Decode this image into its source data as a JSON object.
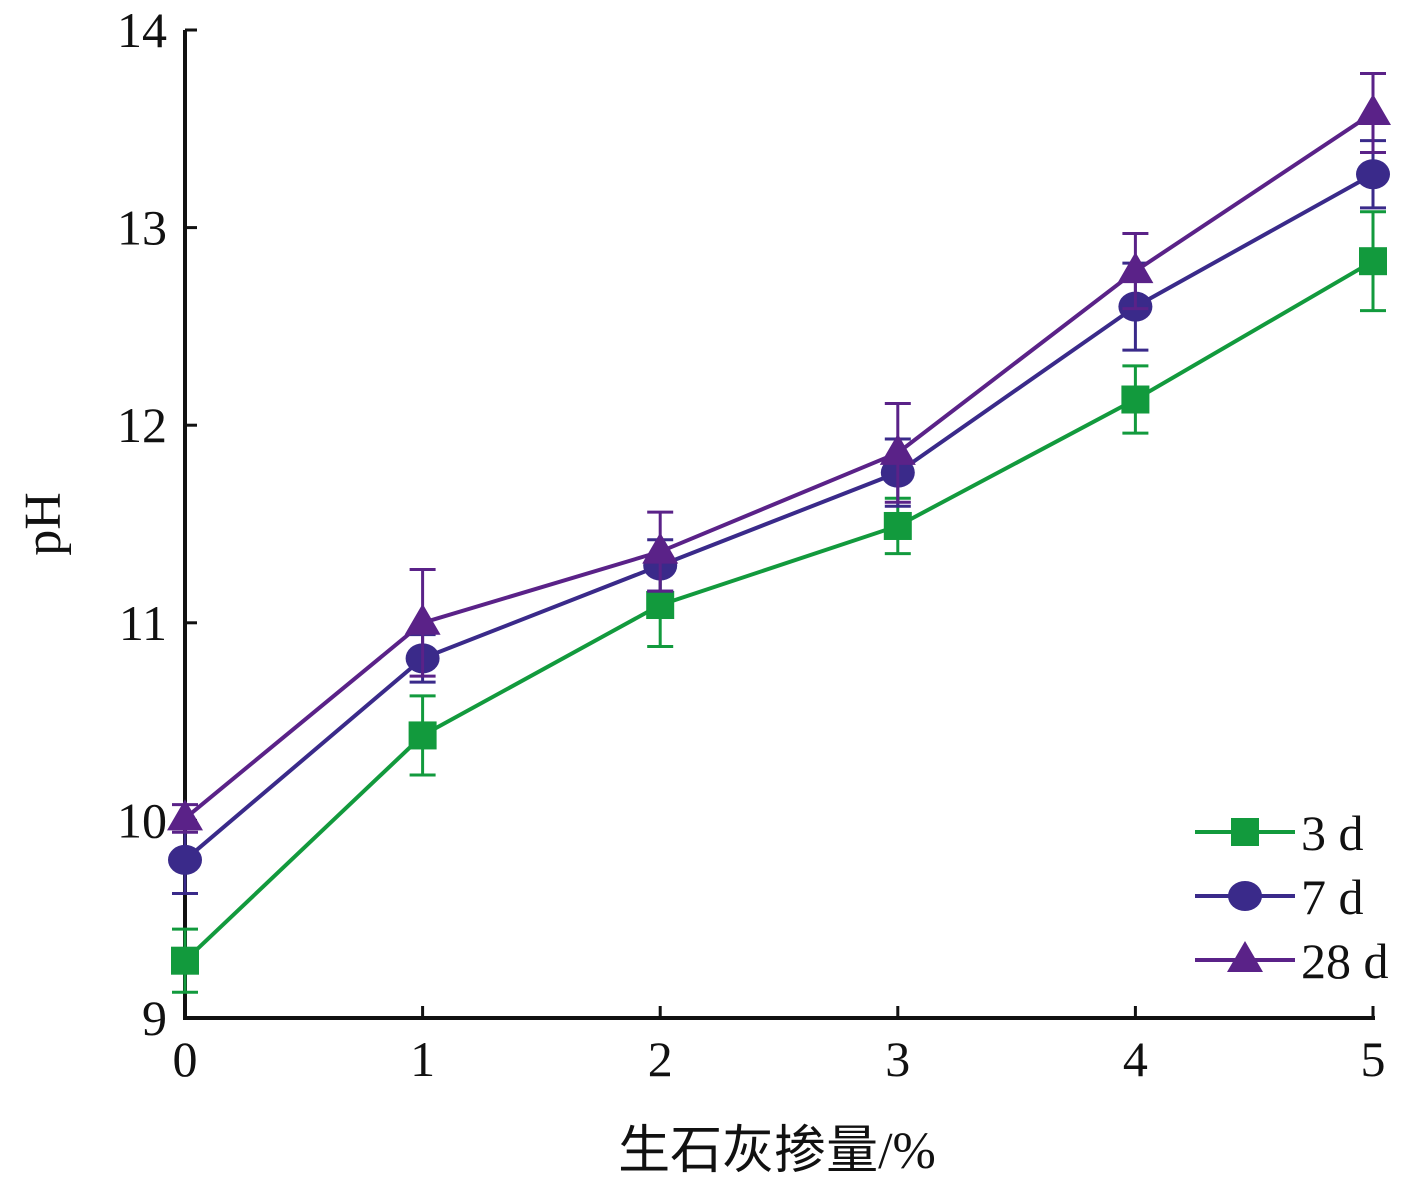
{
  "chart_data": {
    "type": "line",
    "title": "",
    "xlabel": "生石灰掺量/%",
    "ylabel": "pH",
    "x": [
      0,
      1,
      2,
      3,
      4,
      5
    ],
    "xlim": [
      0,
      5
    ],
    "ylim": [
      9,
      14
    ],
    "x_ticks": [
      "0",
      "1",
      "2",
      "3",
      "4",
      "5"
    ],
    "y_ticks": [
      "9",
      "10",
      "11",
      "12",
      "13",
      "14"
    ],
    "grid": false,
    "legend_position": "bottom-right",
    "series": [
      {
        "name": "3 d",
        "color": "#129a3d",
        "marker": "square",
        "values": [
          9.29,
          10.43,
          11.09,
          11.49,
          12.13,
          12.83
        ],
        "errors": [
          0.16,
          0.2,
          0.21,
          0.14,
          0.17,
          0.25
        ]
      },
      {
        "name": "7 d",
        "color": "#3a2a8a",
        "marker": "circle",
        "values": [
          9.8,
          10.82,
          11.29,
          11.76,
          12.6,
          13.27
        ],
        "errors": [
          0.17,
          0.12,
          0.13,
          0.17,
          0.22,
          0.17
        ]
      },
      {
        "name": "28 d",
        "color": "#5a2288",
        "marker": "triangle",
        "values": [
          10.01,
          11.0,
          11.36,
          11.86,
          12.78,
          13.58
        ],
        "errors": [
          0.07,
          0.27,
          0.2,
          0.25,
          0.19,
          0.2
        ]
      }
    ]
  }
}
